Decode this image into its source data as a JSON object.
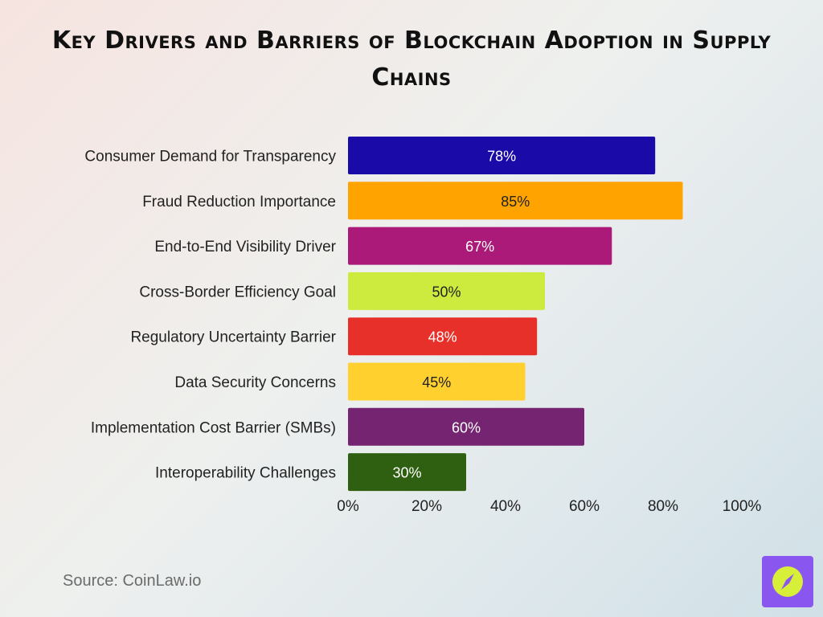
{
  "title": "Key Drivers and Barriers of Blockchain Adoption in Supply Chains",
  "source": "Source: CoinLaw.io",
  "chart_data": {
    "type": "bar",
    "orientation": "horizontal",
    "categories": [
      "Consumer Demand for Transparency",
      "Fraud Reduction Importance",
      "End-to-End Visibility Driver",
      "Cross-Border Efficiency Goal",
      "Regulatory Uncertainty Barrier",
      "Data Security Concerns",
      "Implementation Cost Barrier (SMBs)",
      "Interoperability Challenges"
    ],
    "values": [
      78,
      85,
      67,
      50,
      48,
      45,
      60,
      30
    ],
    "value_labels": [
      "78%",
      "85%",
      "67%",
      "50%",
      "48%",
      "45%",
      "60%",
      "30%"
    ],
    "colors": [
      "#1a0aa8",
      "#ffa300",
      "#ab1a78",
      "#cdea3f",
      "#e8302a",
      "#ffd02e",
      "#742471",
      "#2f6012"
    ],
    "label_colors": [
      "#ffffff",
      "#222222",
      "#ffffff",
      "#222222",
      "#ffffff",
      "#222222",
      "#ffffff",
      "#ffffff"
    ],
    "xticks": [
      "0%",
      "20%",
      "40%",
      "60%",
      "80%",
      "100%"
    ],
    "xlim": [
      0,
      100
    ],
    "grid": false,
    "legend": "none"
  }
}
